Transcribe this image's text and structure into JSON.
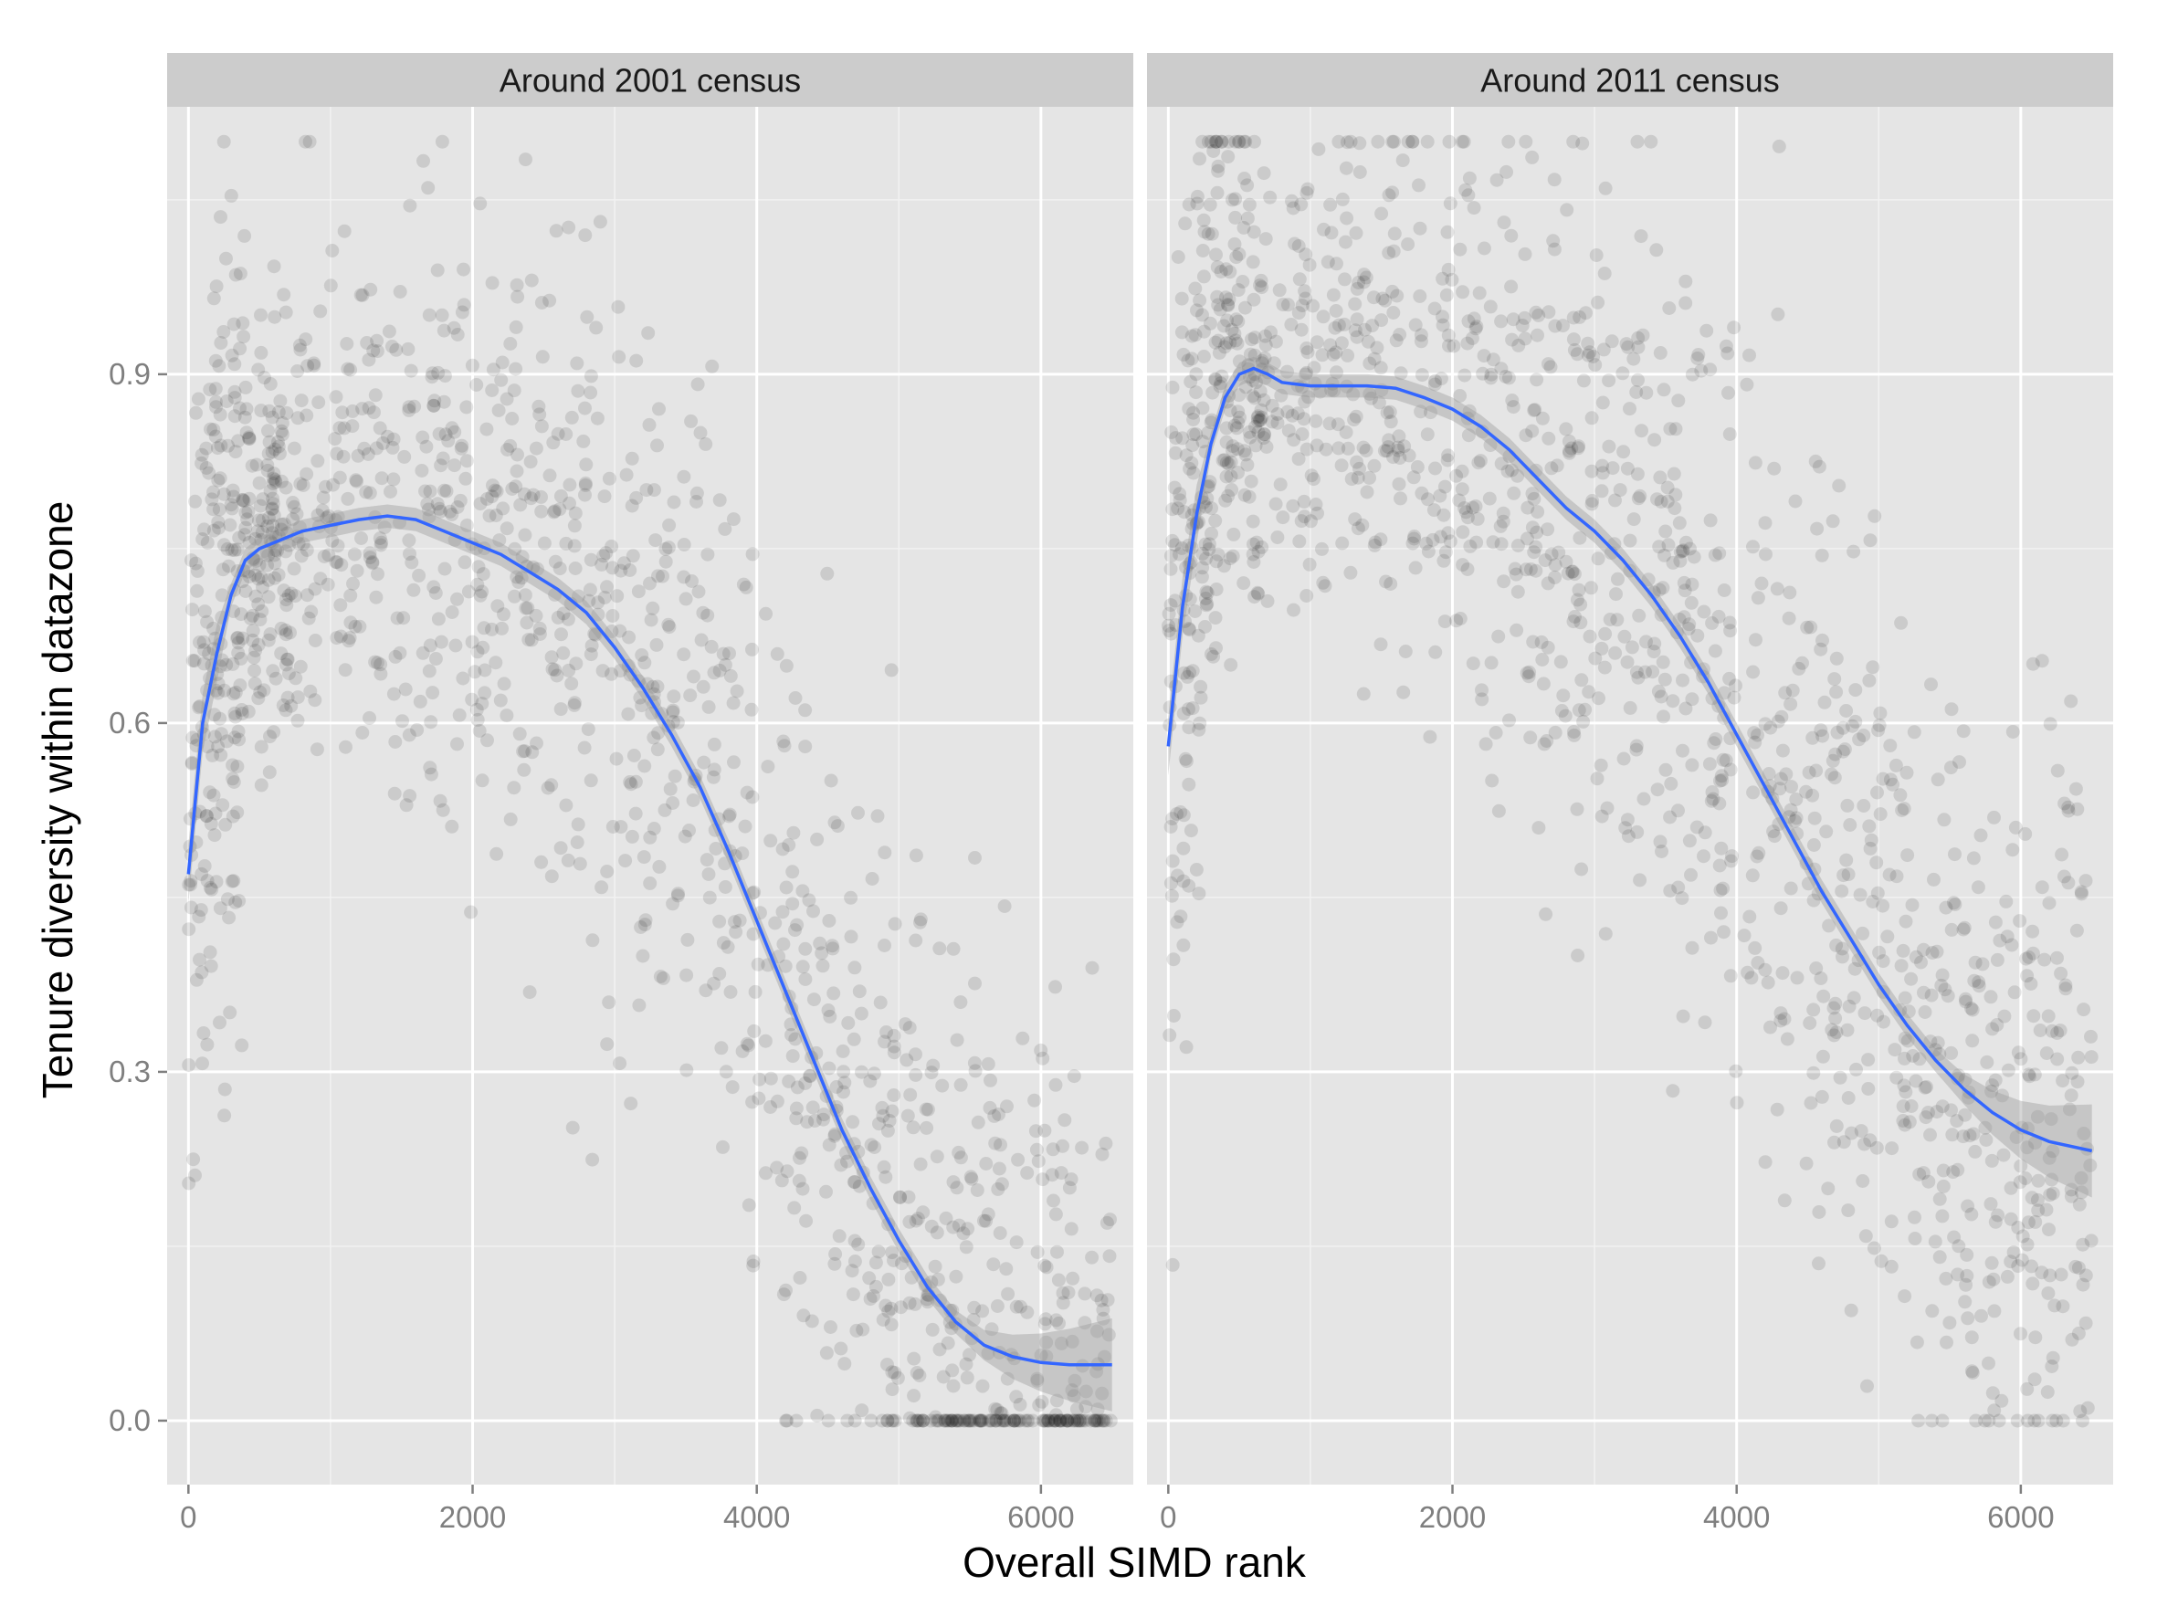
{
  "chart_data": {
    "type": "scatter",
    "xlabel": "Overall SIMD rank",
    "ylabel": "Tenure diversity within datazone",
    "xlim": [
      -150,
      6650
    ],
    "ylim": [
      -0.055,
      1.13
    ],
    "x_ticks": [
      0,
      2000,
      4000,
      6000
    ],
    "x_tick_labels": [
      "0",
      "2000",
      "4000",
      "6000"
    ],
    "y_ticks": [
      0.0,
      0.3,
      0.6,
      0.9
    ],
    "y_tick_labels": [
      "0.0",
      "0.3",
      "0.6",
      "0.9"
    ],
    "grid": true,
    "legend": "none",
    "colors": {
      "panel_bg": "#e5e5e5",
      "strip_bg": "#cccccc",
      "grid_major": "#ffffff",
      "grid_minor": "#f2f2f2",
      "points": "#000000",
      "smooth": "#3366ff",
      "ribbon": "#999999"
    },
    "panels": [
      {
        "strip": "Around 2001 census",
        "point_cloud": "dense scatter of ~6500 datazones; alpha-blended black points",
        "smooth_curve": {
          "x": [
            0,
            100,
            200,
            300,
            400,
            500,
            600,
            800,
            1000,
            1200,
            1400,
            1600,
            1800,
            2000,
            2200,
            2400,
            2600,
            2800,
            3000,
            3200,
            3400,
            3600,
            3800,
            4000,
            4200,
            4400,
            4600,
            4800,
            5000,
            5200,
            5400,
            5600,
            5800,
            6000,
            6200,
            6500
          ],
          "y": [
            0.47,
            0.6,
            0.66,
            0.71,
            0.74,
            0.75,
            0.755,
            0.765,
            0.77,
            0.775,
            0.778,
            0.775,
            0.765,
            0.755,
            0.745,
            0.73,
            0.715,
            0.695,
            0.665,
            0.63,
            0.59,
            0.545,
            0.49,
            0.43,
            0.37,
            0.31,
            0.25,
            0.2,
            0.155,
            0.115,
            0.085,
            0.065,
            0.055,
            0.05,
            0.048,
            0.048
          ]
        }
      },
      {
        "strip": "Around 2011 census",
        "point_cloud": "dense scatter of ~6500 datazones; alpha-blended black points",
        "smooth_curve": {
          "x": [
            0,
            100,
            200,
            300,
            400,
            500,
            600,
            700,
            800,
            1000,
            1200,
            1400,
            1600,
            1800,
            2000,
            2200,
            2400,
            2600,
            2800,
            3000,
            3200,
            3400,
            3600,
            3800,
            4000,
            4200,
            4400,
            4600,
            4800,
            5000,
            5200,
            5400,
            5600,
            5800,
            6000,
            6200,
            6500
          ],
          "y": [
            0.58,
            0.7,
            0.78,
            0.84,
            0.88,
            0.9,
            0.905,
            0.9,
            0.893,
            0.89,
            0.89,
            0.89,
            0.888,
            0.88,
            0.87,
            0.855,
            0.835,
            0.81,
            0.785,
            0.765,
            0.74,
            0.71,
            0.675,
            0.635,
            0.59,
            0.545,
            0.5,
            0.455,
            0.415,
            0.375,
            0.34,
            0.31,
            0.285,
            0.265,
            0.25,
            0.24,
            0.232
          ]
        }
      }
    ]
  }
}
